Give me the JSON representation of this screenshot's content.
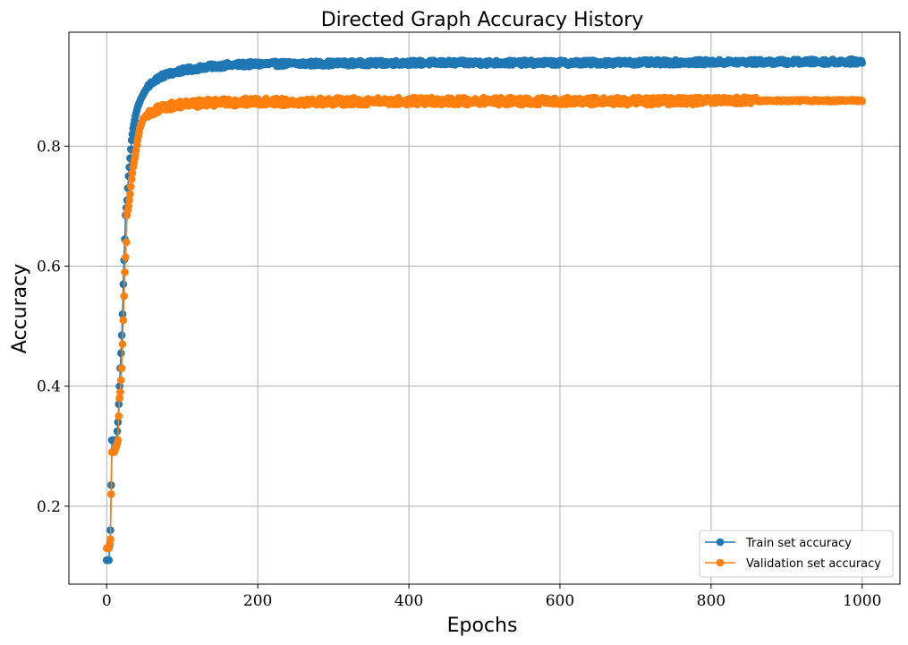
{
  "chart_data": {
    "type": "line",
    "title": "Directed Graph Accuracy History",
    "xlabel": "Epochs",
    "ylabel": "Accuracy",
    "xlim": [
      -50,
      1050
    ],
    "ylim": [
      0.07,
      0.99
    ],
    "xticks": [
      0,
      200,
      400,
      600,
      800,
      1000
    ],
    "yticks": [
      0.2,
      0.4,
      0.6,
      0.8
    ],
    "grid": true,
    "legend_position": "bottom-right",
    "markers": "circle",
    "series": [
      {
        "name": "Train set accuracy",
        "color": "#1f77b4",
        "anchors": [
          [
            0,
            0.11
          ],
          [
            3,
            0.11
          ],
          [
            5,
            0.16
          ],
          [
            7,
            0.31
          ],
          [
            10,
            0.31
          ],
          [
            13,
            0.31
          ],
          [
            15,
            0.34
          ],
          [
            17,
            0.4
          ],
          [
            18,
            0.43
          ],
          [
            19,
            0.455
          ],
          [
            20,
            0.485
          ],
          [
            21,
            0.52
          ],
          [
            22,
            0.57
          ],
          [
            23,
            0.61
          ],
          [
            24,
            0.645
          ],
          [
            25,
            0.685
          ],
          [
            27,
            0.71
          ],
          [
            29,
            0.75
          ],
          [
            31,
            0.78
          ],
          [
            33,
            0.81
          ],
          [
            35,
            0.83
          ],
          [
            38,
            0.85
          ],
          [
            41,
            0.865
          ],
          [
            45,
            0.878
          ],
          [
            50,
            0.89
          ],
          [
            55,
            0.9
          ],
          [
            62,
            0.908
          ],
          [
            70,
            0.915
          ],
          [
            80,
            0.92
          ],
          [
            100,
            0.926
          ],
          [
            130,
            0.932
          ],
          [
            160,
            0.935
          ],
          [
            200,
            0.937
          ],
          [
            300,
            0.938
          ],
          [
            400,
            0.939
          ],
          [
            600,
            0.939
          ],
          [
            800,
            0.94
          ],
          [
            1000,
            0.941
          ]
        ],
        "noise_after": 55,
        "noise_amplitude": 0.004
      },
      {
        "name": "Validation set accuracy",
        "color": "#ff7f0e",
        "anchors": [
          [
            0,
            0.13
          ],
          [
            3,
            0.13
          ],
          [
            5,
            0.145
          ],
          [
            6,
            0.22
          ],
          [
            7,
            0.29
          ],
          [
            10,
            0.29
          ],
          [
            13,
            0.3
          ],
          [
            15,
            0.31
          ],
          [
            16,
            0.35
          ],
          [
            17,
            0.38
          ],
          [
            18,
            0.39
          ],
          [
            19,
            0.41
          ],
          [
            20,
            0.43
          ],
          [
            21,
            0.47
          ],
          [
            22,
            0.51
          ],
          [
            23,
            0.55
          ],
          [
            24,
            0.59
          ],
          [
            25,
            0.615
          ],
          [
            26,
            0.64
          ],
          [
            27,
            0.685
          ],
          [
            29,
            0.7
          ],
          [
            31,
            0.72
          ],
          [
            33,
            0.745
          ],
          [
            35,
            0.765
          ],
          [
            38,
            0.785
          ],
          [
            41,
            0.81
          ],
          [
            44,
            0.83
          ],
          [
            48,
            0.845
          ],
          [
            55,
            0.855
          ],
          [
            65,
            0.86
          ],
          [
            80,
            0.866
          ],
          [
            100,
            0.87
          ],
          [
            150,
            0.873
          ],
          [
            200,
            0.874
          ],
          [
            400,
            0.875
          ],
          [
            700,
            0.875
          ],
          [
            900,
            0.876
          ],
          [
            1000,
            0.876
          ]
        ],
        "noise_after": 55,
        "noise_amplitude": 0.006,
        "noise_stop": 860
      }
    ]
  }
}
